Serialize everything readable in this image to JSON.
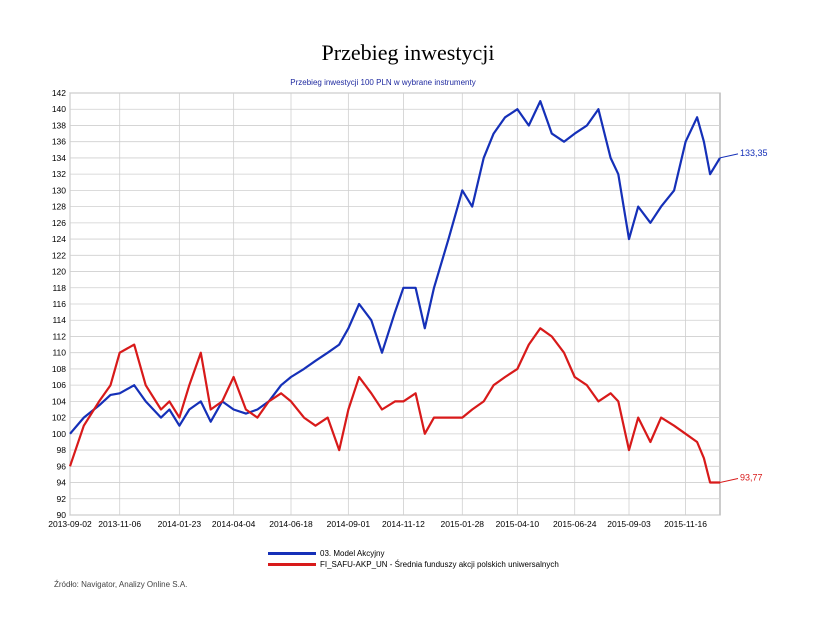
{
  "chart_data": {
    "type": "line",
    "title": "Przebieg inwestycji",
    "subtitle": "Przebieg inwestycji 100 PLN w wybrane instrumenty",
    "x_ticks": [
      "2013-09-02",
      "2013-11-06",
      "2014-01-23",
      "2014-04-04",
      "2014-06-18",
      "2014-09-01",
      "2014-11-12",
      "2015-01-28",
      "2015-04-10",
      "2015-06-24",
      "2015-09-03",
      "2015-11-16"
    ],
    "y_ticks": [
      90,
      92,
      94,
      96,
      98,
      100,
      102,
      104,
      106,
      108,
      110,
      112,
      114,
      116,
      118,
      120,
      122,
      124,
      126,
      128,
      130,
      132,
      134,
      136,
      138,
      140,
      142
    ],
    "ylim": [
      90,
      142
    ],
    "grid": true,
    "series": [
      {
        "name": "03. Model Akcyjny",
        "color": "#1530b8",
        "end_label": "133,35",
        "x": [
          "2013-09-02",
          "2013-09-20",
          "2013-10-10",
          "2013-10-25",
          "2013-11-06",
          "2013-11-25",
          "2013-12-10",
          "2013-12-30",
          "2014-01-10",
          "2014-01-23",
          "2014-02-05",
          "2014-02-20",
          "2014-03-05",
          "2014-03-20",
          "2014-04-04",
          "2014-04-20",
          "2014-05-05",
          "2014-05-20",
          "2014-06-05",
          "2014-06-18",
          "2014-07-05",
          "2014-07-20",
          "2014-08-05",
          "2014-08-20",
          "2014-09-01",
          "2014-09-15",
          "2014-10-01",
          "2014-10-15",
          "2014-11-01",
          "2014-11-12",
          "2014-11-28",
          "2014-12-10",
          "2014-12-22",
          "2015-01-10",
          "2015-01-28",
          "2015-02-10",
          "2015-02-25",
          "2015-03-10",
          "2015-03-25",
          "2015-04-10",
          "2015-04-25",
          "2015-05-10",
          "2015-05-25",
          "2015-06-10",
          "2015-06-24",
          "2015-07-10",
          "2015-07-25",
          "2015-08-10",
          "2015-08-20",
          "2015-09-03",
          "2015-09-15",
          "2015-10-01",
          "2015-10-15",
          "2015-11-01",
          "2015-11-16",
          "2015-12-01",
          "2015-12-10",
          "2015-12-18",
          "2015-12-31"
        ],
        "values": [
          100,
          102,
          103.5,
          104.8,
          105,
          106,
          104,
          102,
          103,
          101,
          103,
          104,
          101.5,
          104,
          103,
          102.5,
          103,
          104,
          106,
          107,
          108,
          109,
          110,
          111,
          113,
          116,
          114,
          110,
          115,
          118,
          118,
          113,
          118,
          124,
          130,
          128,
          134,
          137,
          139,
          140,
          138,
          141,
          137,
          136,
          137,
          138,
          140,
          134,
          132,
          124,
          128,
          126,
          128,
          130,
          136,
          139,
          136,
          132,
          134
        ]
      },
      {
        "name": "FI_SAFU-AKP_UN - Średnia funduszy akcji polskich uniwersalnych",
        "color": "#d81a1a",
        "end_label": "93,77",
        "x": [
          "2013-09-02",
          "2013-09-20",
          "2013-10-10",
          "2013-10-25",
          "2013-11-06",
          "2013-11-25",
          "2013-12-10",
          "2013-12-30",
          "2014-01-10",
          "2014-01-23",
          "2014-02-05",
          "2014-02-20",
          "2014-03-05",
          "2014-03-20",
          "2014-04-04",
          "2014-04-20",
          "2014-05-05",
          "2014-05-20",
          "2014-06-05",
          "2014-06-18",
          "2014-07-05",
          "2014-07-20",
          "2014-08-05",
          "2014-08-20",
          "2014-09-01",
          "2014-09-15",
          "2014-10-01",
          "2014-10-15",
          "2014-11-01",
          "2014-11-12",
          "2014-11-28",
          "2014-12-10",
          "2014-12-22",
          "2015-01-10",
          "2015-01-28",
          "2015-02-10",
          "2015-02-25",
          "2015-03-10",
          "2015-03-25",
          "2015-04-10",
          "2015-04-25",
          "2015-05-10",
          "2015-05-25",
          "2015-06-10",
          "2015-06-24",
          "2015-07-10",
          "2015-07-25",
          "2015-08-10",
          "2015-08-20",
          "2015-09-03",
          "2015-09-15",
          "2015-10-01",
          "2015-10-15",
          "2015-11-01",
          "2015-11-16",
          "2015-12-01",
          "2015-12-10",
          "2015-12-18",
          "2015-12-31"
        ],
        "values": [
          96,
          101,
          104,
          106,
          110,
          111,
          106,
          103,
          104,
          102,
          106,
          110,
          103,
          104,
          107,
          103,
          102,
          104,
          105,
          104,
          102,
          101,
          102,
          98,
          103,
          107,
          105,
          103,
          104,
          104,
          105,
          100,
          102,
          102,
          102,
          103,
          104,
          106,
          107,
          108,
          111,
          113,
          112,
          110,
          107,
          106,
          104,
          105,
          104,
          98,
          102,
          99,
          102,
          101,
          100,
          99,
          97,
          94,
          94
        ]
      }
    ]
  },
  "source": "Źródło: Navigator, Analizy Online S.A."
}
